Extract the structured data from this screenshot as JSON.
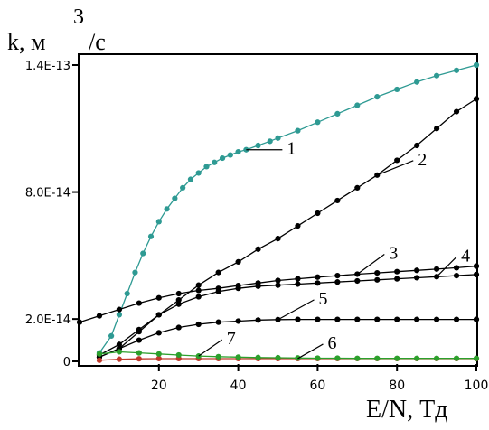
{
  "chart_data": {
    "type": "line",
    "ylabel_main": "k, м",
    "ylabel_sup": "3",
    "ylabel_tail": "/c",
    "xlabel": "E/N, Тд",
    "xlim": [
      0,
      100
    ],
    "ylim": [
      0,
      1.4e-13
    ],
    "xticks": [
      {
        "v": 20,
        "label": "20"
      },
      {
        "v": 40,
        "label": "40"
      },
      {
        "v": 60,
        "label": "60"
      },
      {
        "v": 80,
        "label": "80"
      },
      {
        "v": 100,
        "label": "100"
      }
    ],
    "yticks": [
      {
        "v": 0,
        "label": "0"
      },
      {
        "v": 2e-14,
        "label": "2.0E-14"
      },
      {
        "v": 8e-14,
        "label": "8.0E-14"
      },
      {
        "v": 1.4e-13,
        "label": "1.4E-13"
      }
    ],
    "grid": false,
    "series": [
      {
        "name": "1",
        "color": "#2e9a93",
        "x": [
          5,
          8,
          10,
          12,
          14,
          16,
          18,
          20,
          22,
          24,
          26,
          28,
          30,
          32,
          34,
          36,
          38,
          40,
          42,
          45,
          48,
          50,
          55,
          60,
          65,
          70,
          75,
          80,
          85,
          90,
          95,
          100
        ],
        "y": [
          4e-15,
          1.2e-14,
          2.2e-14,
          3.2e-14,
          4.2e-14,
          5.1e-14,
          5.9e-14,
          6.6e-14,
          7.2e-14,
          7.7e-14,
          8.2e-14,
          8.6e-14,
          8.9e-14,
          9.2e-14,
          9.4e-14,
          9.6e-14,
          9.75e-14,
          9.9e-14,
          1e-13,
          1.02e-13,
          1.04e-13,
          1.055e-13,
          1.09e-13,
          1.13e-13,
          1.17e-13,
          1.21e-13,
          1.25e-13,
          1.285e-13,
          1.32e-13,
          1.35e-13,
          1.375e-13,
          1.4e-13
        ]
      },
      {
        "name": "2",
        "color": "#000000",
        "x": [
          5,
          10,
          15,
          20,
          25,
          30,
          35,
          40,
          45,
          50,
          55,
          60,
          65,
          70,
          75,
          80,
          85,
          90,
          95,
          100
        ],
        "y": [
          2e-15,
          6e-15,
          1.4e-14,
          2.2e-14,
          2.9e-14,
          3.6e-14,
          4.2e-14,
          4.7e-14,
          5.3e-14,
          5.8e-14,
          6.4e-14,
          7e-14,
          7.6e-14,
          8.2e-14,
          8.8e-14,
          9.5e-14,
          1.02e-13,
          1.1e-13,
          1.18e-13,
          1.24e-13
        ]
      },
      {
        "name": "3",
        "color": "#000000",
        "x": [
          0,
          5,
          10,
          15,
          20,
          25,
          30,
          35,
          40,
          45,
          50,
          55,
          60,
          65,
          70,
          75,
          80,
          85,
          90,
          95,
          100
        ],
        "y": [
          1.85e-14,
          2.15e-14,
          2.45e-14,
          2.75e-14,
          3e-14,
          3.2e-14,
          3.35e-14,
          3.45e-14,
          3.58e-14,
          3.7e-14,
          3.82e-14,
          3.9e-14,
          3.98e-14,
          4.05e-14,
          4.12e-14,
          4.18e-14,
          4.24e-14,
          4.3e-14,
          4.36e-14,
          4.42e-14,
          4.5e-14
        ]
      },
      {
        "name": "4",
        "color": "#000000",
        "x": [
          5,
          10,
          15,
          20,
          25,
          30,
          35,
          40,
          45,
          50,
          55,
          60,
          65,
          70,
          75,
          80,
          85,
          90,
          95,
          100
        ],
        "y": [
          3e-15,
          8e-15,
          1.5e-14,
          2.2e-14,
          2.7e-14,
          3.05e-14,
          3.3e-14,
          3.45e-14,
          3.55e-14,
          3.6e-14,
          3.65e-14,
          3.7e-14,
          3.75e-14,
          3.8e-14,
          3.85e-14,
          3.9e-14,
          3.95e-14,
          4e-14,
          4.05e-14,
          4.1e-14
        ]
      },
      {
        "name": "5",
        "color": "#000000",
        "x": [
          5,
          10,
          15,
          20,
          25,
          30,
          35,
          40,
          45,
          50,
          55,
          60,
          65,
          70,
          75,
          80,
          85,
          90,
          95,
          100
        ],
        "y": [
          2e-15,
          6e-15,
          1e-14,
          1.35e-14,
          1.6e-14,
          1.75e-14,
          1.85e-14,
          1.9e-14,
          1.95e-14,
          1.97e-14,
          1.98e-14,
          1.98e-14,
          1.98e-14,
          1.98e-14,
          1.98e-14,
          1.98e-14,
          1.98e-14,
          1.98e-14,
          1.98e-14,
          1.98e-14
        ]
      },
      {
        "name": "6",
        "color": "#c0392b",
        "x": [
          5,
          10,
          15,
          20,
          25,
          30,
          35,
          40,
          45,
          50,
          55,
          60,
          65,
          70,
          75,
          80,
          85,
          90,
          95,
          100
        ],
        "y": [
          5e-16,
          1e-15,
          1.2e-15,
          1.3e-15,
          1.3e-15,
          1.3e-15,
          1.3e-15,
          1.3e-15,
          1.3e-15,
          1.3e-15,
          1.3e-15,
          1.3e-15,
          1.3e-15,
          1.3e-15,
          1.3e-15,
          1.3e-15,
          1.3e-15,
          1.3e-15,
          1.3e-15,
          1.3e-15
        ]
      },
      {
        "name": "7",
        "color": "#2ca02c",
        "x": [
          5,
          10,
          15,
          20,
          25,
          30,
          35,
          40,
          45,
          50,
          55,
          60,
          65,
          70,
          75,
          80,
          85,
          90,
          95,
          100
        ],
        "y": [
          3.5e-15,
          4.5e-15,
          4e-15,
          3.5e-15,
          3e-15,
          2.5e-15,
          2.2e-15,
          2e-15,
          1.8e-15,
          1.7e-15,
          1.6e-15,
          1.5e-15,
          1.5e-15,
          1.4e-15,
          1.4e-15,
          1.4e-15,
          1.4e-15,
          1.4e-15,
          1.4e-15,
          1.4e-15
        ]
      }
    ],
    "annotations": [
      {
        "text": "1",
        "series": "1",
        "point_x": 42
      },
      {
        "text": "2",
        "series": "2",
        "point_x": 76
      },
      {
        "text": "3",
        "series": "3",
        "point_x": 71
      },
      {
        "text": "4",
        "series": "4",
        "point_x": 91
      },
      {
        "text": "5",
        "series": "5",
        "point_x": 52
      },
      {
        "text": "6",
        "series": "6",
        "point_x": 53
      },
      {
        "text": "7",
        "series": "7",
        "point_x": 32
      }
    ]
  }
}
